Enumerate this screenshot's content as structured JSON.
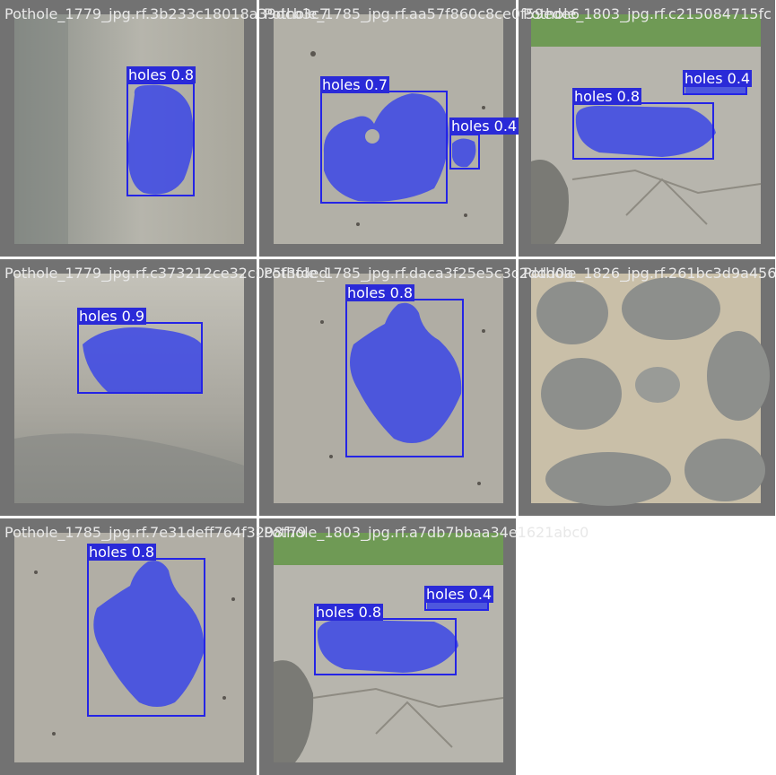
{
  "colors": {
    "tile_background": "#727272",
    "box": "#2424e6",
    "mask": "#3b46e6",
    "label_background": "#2a2ad8",
    "label_text": "#ffffff",
    "title_text": "#e8e8e8"
  },
  "tiles": [
    {
      "title": "Pothole_1779_jpg.rf.3b233c18018a39dcb3c7",
      "scene": "shaded-road",
      "detections": [
        {
          "label": "holes",
          "conf": "0.8",
          "text": "holes 0.8"
        }
      ]
    },
    {
      "title": "Pothole_1785_jpg.rf.aa57f860c8ce0f59ede6",
      "scene": "gravel-road",
      "detections": [
        {
          "label": "holes",
          "conf": "0.7",
          "text": "holes 0.7"
        },
        {
          "label": "holes",
          "conf": "0.4",
          "text": "holes 0.4"
        }
      ]
    },
    {
      "title": "Pothole_1803_jpg.rf.c215084715fc",
      "scene": "cracked-road-with-grass",
      "detections": [
        {
          "label": "holes",
          "conf": "0.4",
          "text": "holes 0.4"
        },
        {
          "label": "holes",
          "conf": "0.8",
          "text": "holes 0.8"
        }
      ]
    },
    {
      "title": "Pothole_1779_jpg.rf.c373212ce32c0c5f3fded",
      "scene": "shaded-road",
      "detections": [
        {
          "label": "holes",
          "conf": "0.9",
          "text": "holes 0.9"
        }
      ]
    },
    {
      "title": "Pothole_1785_jpg.rf.daca3f25e5c3c2ddd0a",
      "scene": "gravel-road",
      "detections": [
        {
          "label": "holes",
          "conf": "0.8",
          "text": "holes 0.8"
        }
      ]
    },
    {
      "title": "Pothole_1826_jpg.rf.261bc3d9a456",
      "scene": "cracked-asphalt",
      "detections": []
    },
    {
      "title": "Pothole_1785_jpg.rf.7e31deff764f3298f79",
      "scene": "gravel-road",
      "detections": [
        {
          "label": "holes",
          "conf": "0.8",
          "text": "holes 0.8"
        }
      ]
    },
    {
      "title": "Pothole_1803_jpg.rf.a7db7bbaa34e1621abc0",
      "scene": "cracked-road-with-grass",
      "detections": [
        {
          "label": "holes",
          "conf": "0.4",
          "text": "holes 0.4"
        },
        {
          "label": "holes",
          "conf": "0.8",
          "text": "holes 0.8"
        }
      ]
    }
  ]
}
